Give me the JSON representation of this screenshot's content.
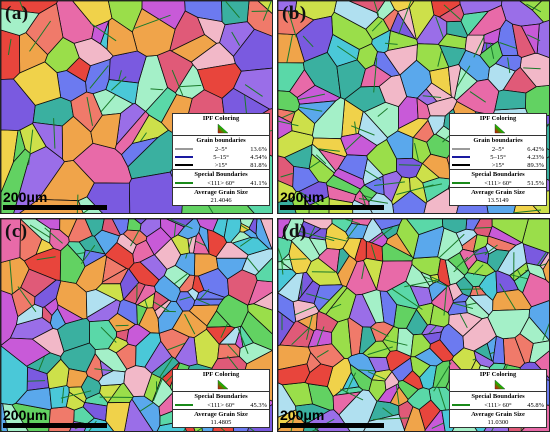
{
  "panels": [
    {
      "label": "(a)",
      "scale": "200μm",
      "legend": {
        "ipf_title": "IPF Coloring",
        "gb_title": "Grain boundaries",
        "gb_rows": [
          {
            "label": "2–5°",
            "pct": "13.6%",
            "color": "#9a9a9a"
          },
          {
            "label": "5–15°",
            "pct": "4.54%",
            "color": "#1a1aa0"
          },
          {
            "label": ">15°",
            "pct": "81.8%",
            "color": "#000000"
          }
        ],
        "sb_title": "Special Boundaries",
        "sb_rows": [
          {
            "label": "<111> 60°",
            "pct": "41.1%",
            "color": "#1a8a1a"
          }
        ],
        "ags_title": "Average Grain Size",
        "ags_value": "21.4046"
      }
    },
    {
      "label": "(b)",
      "scale": "200μm",
      "legend": {
        "ipf_title": "IPF Coloring",
        "gb_title": "Grain boundaries",
        "gb_rows": [
          {
            "label": "2–5°",
            "pct": "6.42%",
            "color": "#9a9a9a"
          },
          {
            "label": "5–15°",
            "pct": "4.23%",
            "color": "#1a1aa0"
          },
          {
            "label": ">15°",
            "pct": "89.3%",
            "color": "#000000"
          }
        ],
        "sb_title": "Special Boundaries",
        "sb_rows": [
          {
            "label": "<111> 60°",
            "pct": "51.5%",
            "color": "#1a8a1a"
          }
        ],
        "ags_title": "Average Grain Size",
        "ags_value": "13.5149"
      }
    },
    {
      "label": "(c)",
      "scale": "200μm",
      "legend": {
        "ipf_title": "IPF Coloring",
        "gb_title": "",
        "gb_rows": [],
        "sb_title": "Special Boundaries",
        "sb_rows": [
          {
            "label": "<111> 60°",
            "pct": "45.3%",
            "color": "#1a8a1a"
          }
        ],
        "ags_title": "Average Grain Size",
        "ags_value": "11.4805"
      }
    },
    {
      "label": "(d)",
      "scale": "200μm",
      "legend": {
        "ipf_title": "IPF Coloring",
        "gb_title": "",
        "gb_rows": [],
        "sb_title": "Special Boundaries",
        "sb_rows": [
          {
            "label": "<111> 60°",
            "pct": "45.8%",
            "color": "#1a8a1a"
          }
        ],
        "ags_title": "Average Grain Size",
        "ags_value": "11.0300"
      }
    }
  ],
  "palette": [
    "#e8453c",
    "#f07a6a",
    "#e86aa8",
    "#c85ad8",
    "#9a6ee8",
    "#6c7af0",
    "#5aa8ec",
    "#4ac8d8",
    "#5ad8a8",
    "#62d262",
    "#9ade4a",
    "#cde04a",
    "#f0d24a",
    "#f0a44a",
    "#b0e0f0",
    "#f2b8c8",
    "#a4f0c8",
    "#7a5ae0",
    "#3ab0a0",
    "#e05a78"
  ]
}
